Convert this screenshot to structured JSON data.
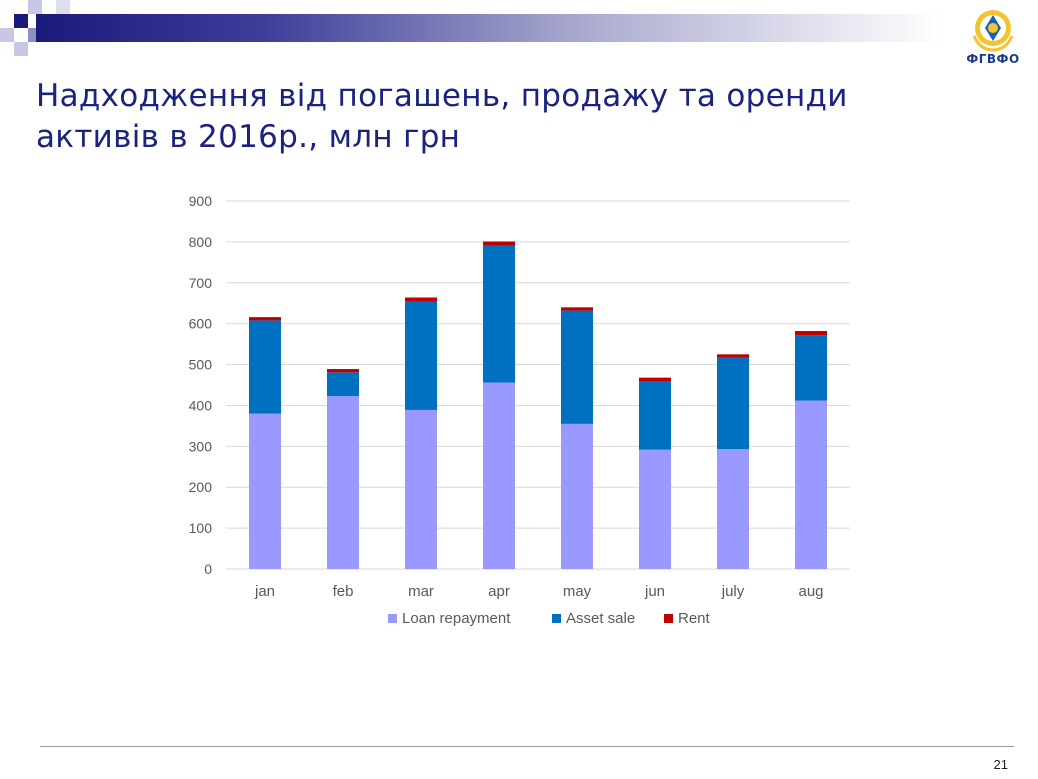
{
  "slide": {
    "title_line1": "Надходження від погашень, продажу та оренди",
    "title_line2": "активів в 2016р., млн грн",
    "logo_text": "ФГВФО",
    "page_number": "21"
  },
  "colors": {
    "loan": "#9999ff",
    "asset": "#0070c0",
    "rent": "#c00000",
    "grid": "#d9d9d9",
    "title": "#1a237e"
  },
  "chart_data": {
    "type": "bar",
    "stacked": true,
    "categories": [
      "jan",
      "feb",
      "mar",
      "apr",
      "may",
      "jun",
      "july",
      "aug"
    ],
    "series": [
      {
        "name": "Loan repayment",
        "values": [
          380,
          423,
          389,
          456,
          355,
          292,
          293,
          412
        ]
      },
      {
        "name": "Asset sale",
        "values": [
          228,
          58,
          265,
          335,
          277,
          166,
          224,
          160
        ]
      },
      {
        "name": "Rent",
        "values": [
          8,
          8,
          10,
          10,
          8,
          10,
          8,
          10
        ]
      }
    ],
    "title": "",
    "xlabel": "",
    "ylabel": "",
    "ylim": [
      0,
      900
    ],
    "yticks": [
      0,
      100,
      200,
      300,
      400,
      500,
      600,
      700,
      800,
      900
    ],
    "grid": true,
    "legend_position": "bottom"
  }
}
